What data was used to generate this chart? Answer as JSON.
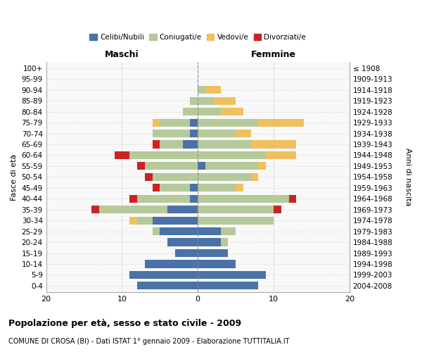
{
  "age_groups": [
    "0-4",
    "5-9",
    "10-14",
    "15-19",
    "20-24",
    "25-29",
    "30-34",
    "35-39",
    "40-44",
    "45-49",
    "50-54",
    "55-59",
    "60-64",
    "65-69",
    "70-74",
    "75-79",
    "80-84",
    "85-89",
    "90-94",
    "95-99",
    "100+"
  ],
  "birth_years": [
    "2004-2008",
    "1999-2003",
    "1994-1998",
    "1989-1993",
    "1984-1988",
    "1979-1983",
    "1974-1978",
    "1969-1973",
    "1964-1968",
    "1959-1963",
    "1954-1958",
    "1949-1953",
    "1944-1948",
    "1939-1943",
    "1934-1938",
    "1929-1933",
    "1924-1928",
    "1919-1923",
    "1914-1918",
    "1909-1913",
    "≤ 1908"
  ],
  "colors": {
    "celibe": "#4a72a8",
    "coniugato": "#b5c99a",
    "vedovo": "#f0c060",
    "divorziato": "#cc2222"
  },
  "maschi": {
    "celibe": [
      8,
      9,
      7,
      3,
      4,
      5,
      6,
      4,
      1,
      1,
      0,
      0,
      0,
      2,
      1,
      1,
      0,
      0,
      0,
      0,
      0
    ],
    "coniugato": [
      0,
      0,
      0,
      0,
      0,
      1,
      2,
      9,
      7,
      4,
      6,
      7,
      9,
      3,
      5,
      4,
      2,
      1,
      0,
      0,
      0
    ],
    "vedovo": [
      0,
      0,
      0,
      0,
      0,
      0,
      1,
      0,
      0,
      0,
      0,
      0,
      0,
      0,
      0,
      1,
      0,
      0,
      0,
      0,
      0
    ],
    "divorziato": [
      0,
      0,
      0,
      0,
      0,
      0,
      0,
      1,
      1,
      1,
      1,
      1,
      2,
      1,
      0,
      0,
      0,
      0,
      0,
      0,
      0
    ]
  },
  "femmine": {
    "nubile": [
      8,
      9,
      5,
      4,
      3,
      3,
      0,
      0,
      0,
      0,
      0,
      1,
      0,
      0,
      0,
      0,
      0,
      0,
      0,
      0,
      0
    ],
    "coniugata": [
      0,
      0,
      0,
      0,
      1,
      2,
      10,
      10,
      12,
      5,
      7,
      7,
      9,
      7,
      5,
      8,
      3,
      2,
      1,
      0,
      0
    ],
    "vedova": [
      0,
      0,
      0,
      0,
      0,
      0,
      0,
      0,
      0,
      1,
      1,
      1,
      4,
      6,
      2,
      6,
      3,
      3,
      2,
      0,
      0
    ],
    "divorziata": [
      0,
      0,
      0,
      0,
      0,
      0,
      0,
      1,
      1,
      0,
      0,
      0,
      0,
      0,
      0,
      0,
      0,
      0,
      0,
      0,
      0
    ]
  },
  "xlim": [
    -20,
    20
  ],
  "xticks": [
    -20,
    -10,
    0,
    10,
    20
  ],
  "xticklabels": [
    "20",
    "10",
    "0",
    "10",
    "20"
  ],
  "title": "Popolazione per età, sesso e stato civile - 2009",
  "subtitle": "COMUNE DI CROSA (BI) - Dati ISTAT 1° gennaio 2009 - Elaborazione TUTTITALIA.IT",
  "ylabel_left": "Fasce di età",
  "ylabel_right": "Anni di nascita",
  "legend_labels": [
    "Celibi/Nubili",
    "Coniugati/e",
    "Vedovi/e",
    "Divorziati/e"
  ],
  "header_maschi": "Maschi",
  "header_femmine": "Femmine",
  "bg_color": "#f8f8f8"
}
